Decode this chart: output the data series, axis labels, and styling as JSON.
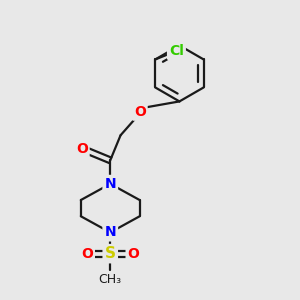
{
  "bg_color": "#e8e8e8",
  "bond_color": "#1a1a1a",
  "bond_width": 1.6,
  "atom_colors": {
    "O": "#ff0000",
    "N": "#0000ff",
    "S": "#cccc00",
    "Cl": "#33cc00",
    "C": "#1a1a1a"
  },
  "font_size_atom": 10,
  "figsize": [
    3.0,
    3.0
  ],
  "dpi": 100
}
